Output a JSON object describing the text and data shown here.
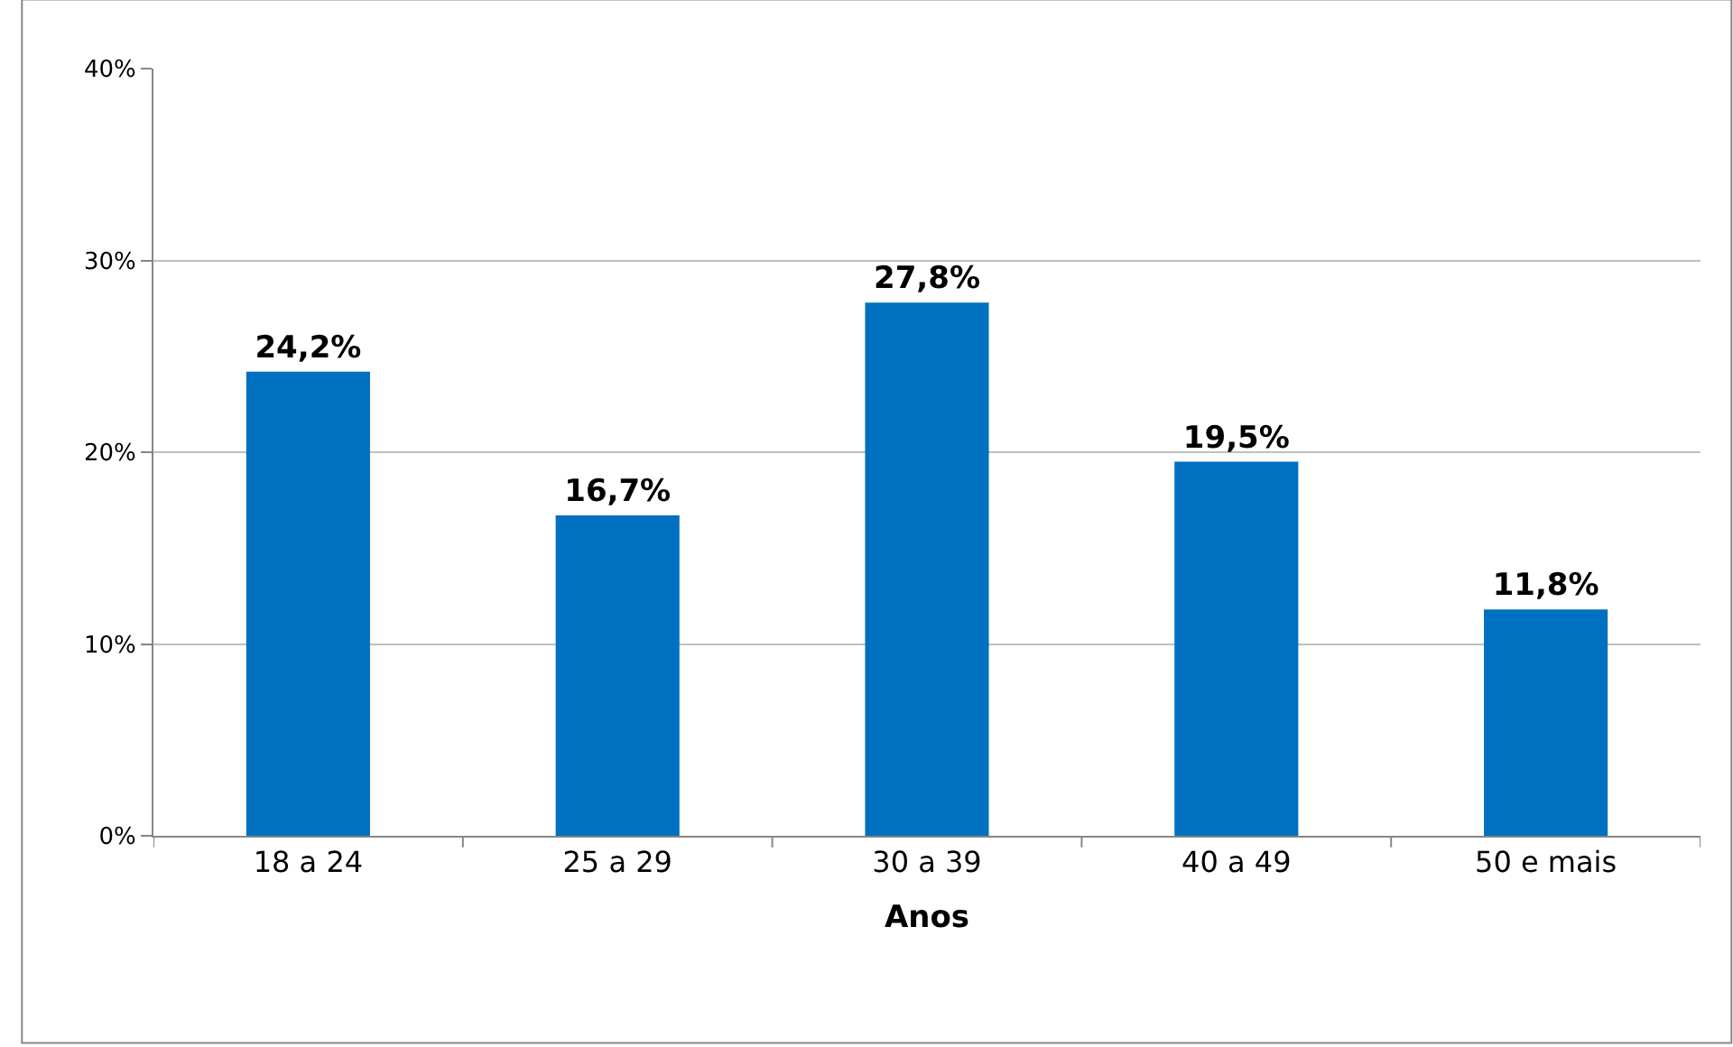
{
  "chart_data": {
    "type": "bar",
    "xlabel": "Anos",
    "categories": [
      "18 a 24",
      "25 a 29",
      "30 a 39",
      "40 a 49",
      "50 e mais"
    ],
    "values": [
      24.2,
      16.7,
      27.8,
      19.5,
      11.8
    ],
    "value_labels": [
      "24,2%",
      "16,7%",
      "27,8%",
      "19,5%",
      "11,8%"
    ],
    "color": "#0070c0",
    "ylim": [
      0,
      40
    ],
    "yticks": [
      {
        "value": 0,
        "label": "0%"
      },
      {
        "value": 10,
        "label": "10%"
      },
      {
        "value": 20,
        "label": "20%"
      },
      {
        "value": 30,
        "label": "30%"
      },
      {
        "value": 40,
        "label": "40%"
      }
    ],
    "grid": "y"
  }
}
